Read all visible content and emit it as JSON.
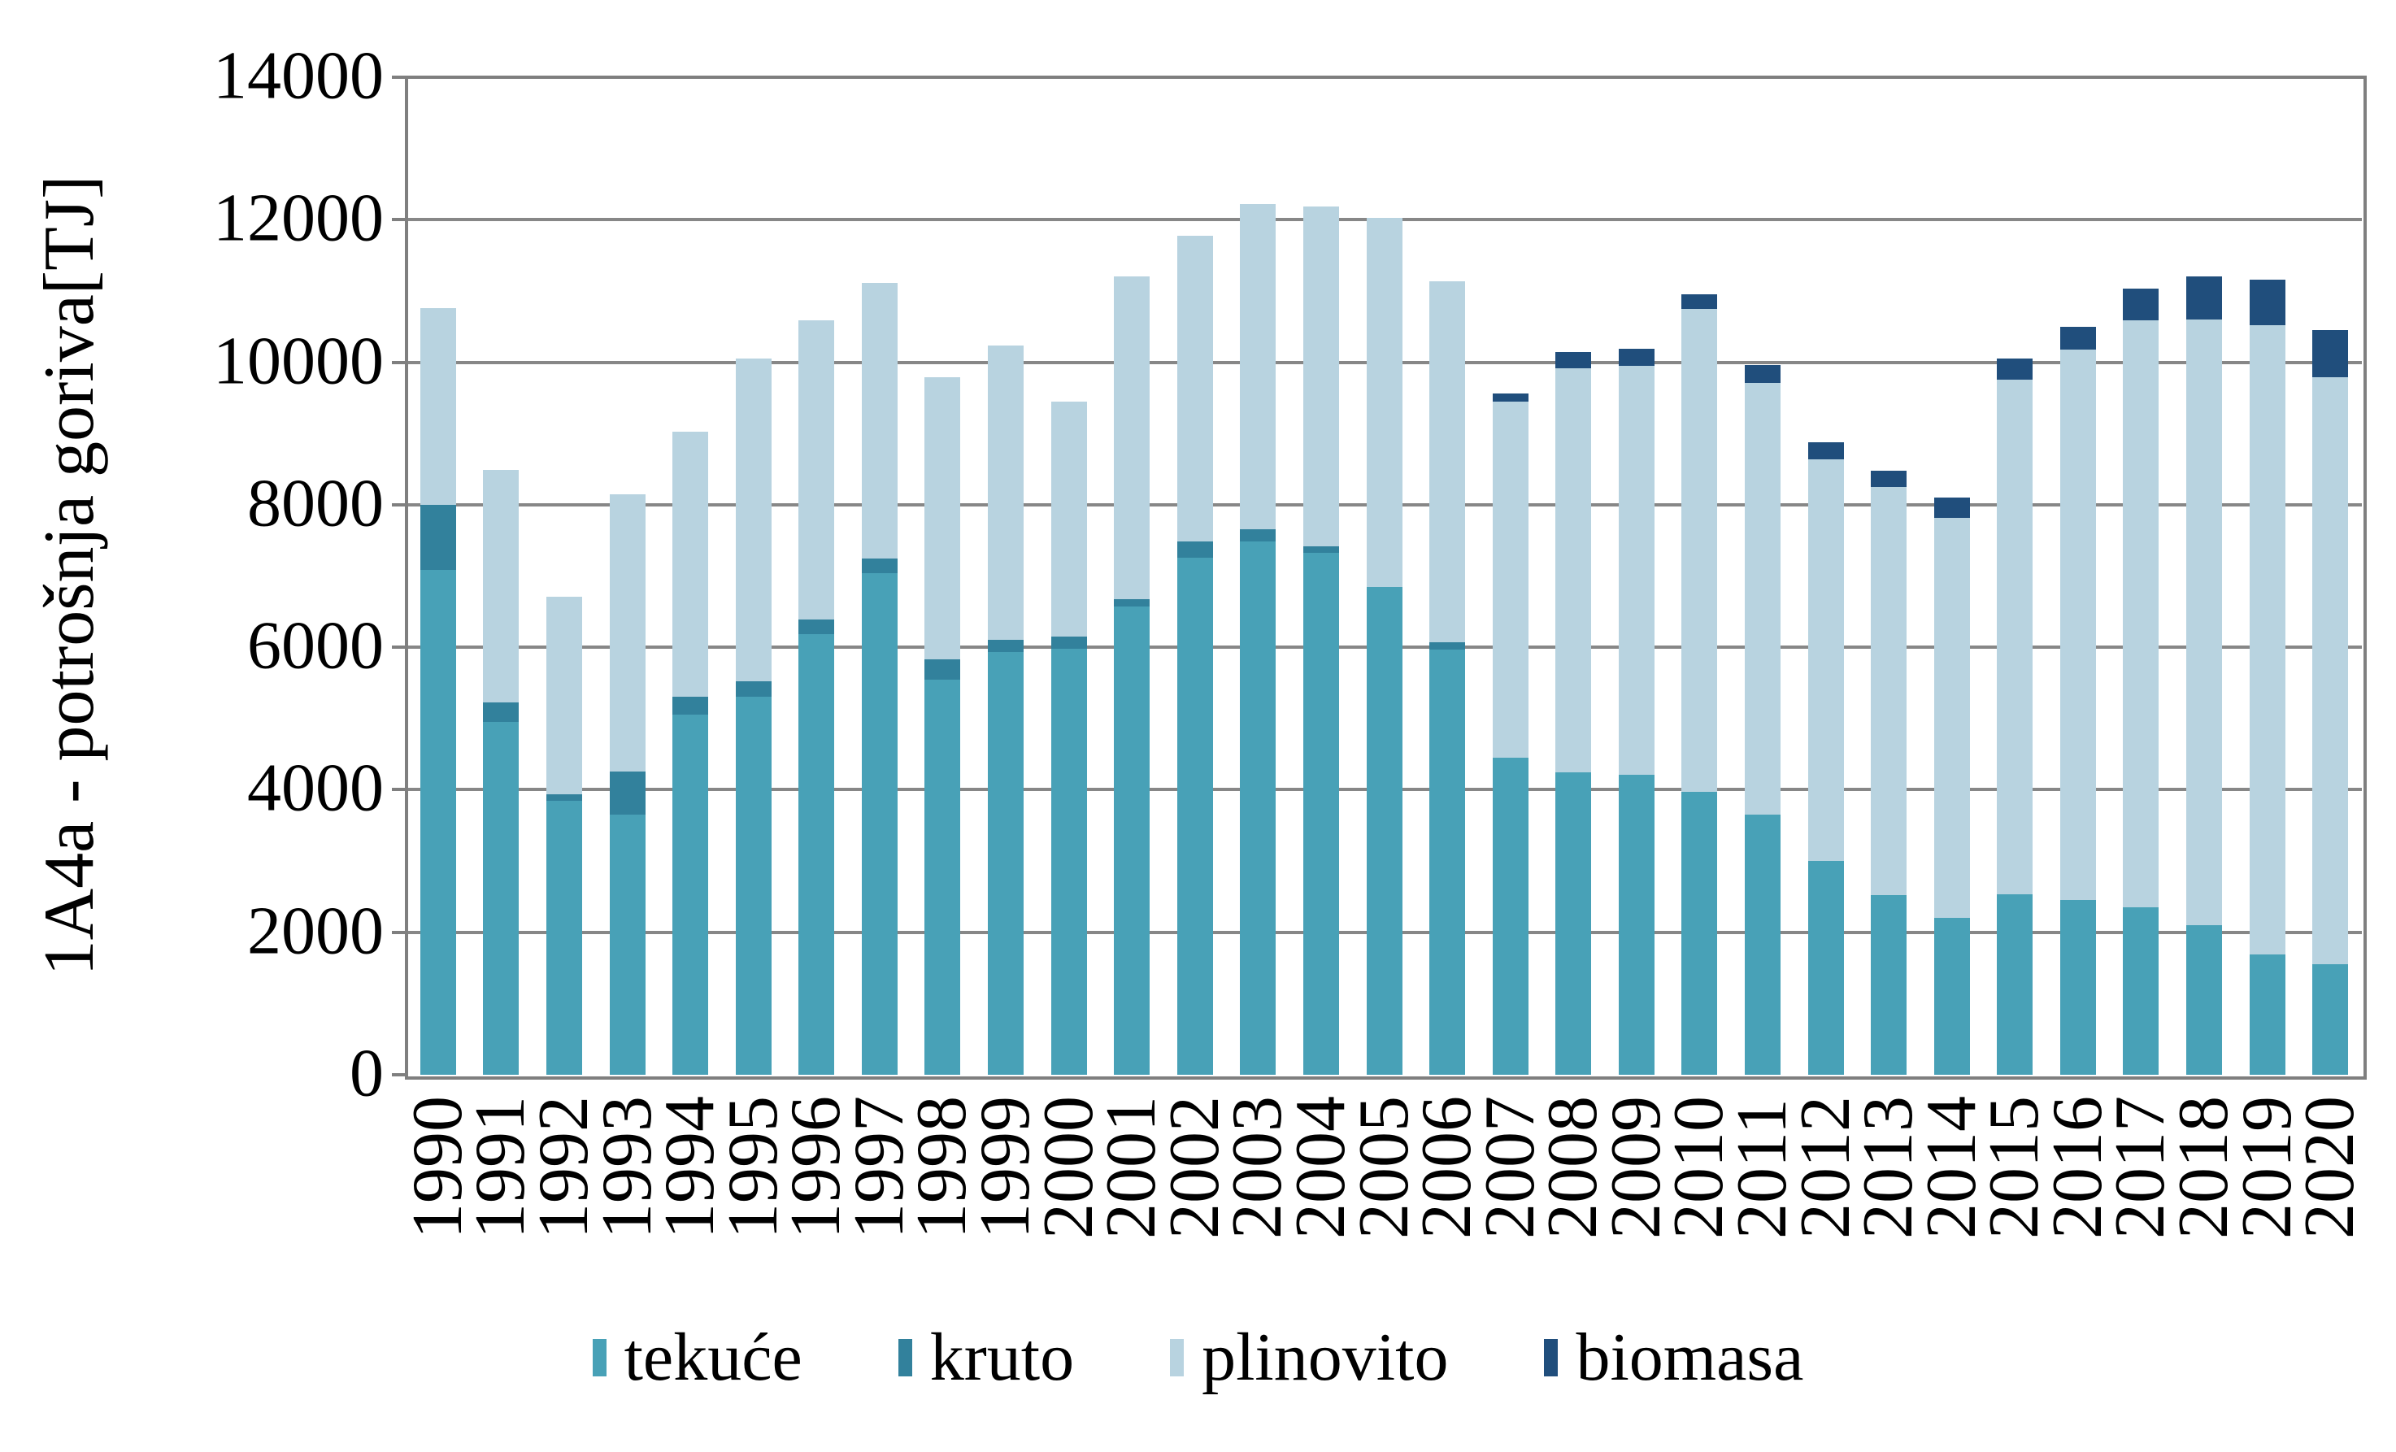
{
  "chart": {
    "y_axis_title": "1A4a - potrošnja goriva[TJ]",
    "colors": {
      "gridline": "#878787",
      "axis_border": "#7f7f7f",
      "text": "#000000",
      "background": "#ffffff"
    }
  },
  "chart_data": {
    "type": "bar",
    "stacked": true,
    "title": "",
    "xlabel": "",
    "ylabel": "1A4a - potrošnja goriva[TJ]",
    "ylim": [
      0,
      14000
    ],
    "yticks": [
      0,
      2000,
      4000,
      6000,
      8000,
      10000,
      12000,
      14000
    ],
    "grid": true,
    "legend_position": "bottom",
    "categories": [
      "1990",
      "1991",
      "1992",
      "1993",
      "1994",
      "1995",
      "1996",
      "1997",
      "1998",
      "1999",
      "2000",
      "2001",
      "2002",
      "2003",
      "2004",
      "2005",
      "2006",
      "2007",
      "2008",
      "2009",
      "2010",
      "2011",
      "2012",
      "2013",
      "2014",
      "2015",
      "2016",
      "2017",
      "2018",
      "2019",
      "2020"
    ],
    "series": [
      {
        "name": "tekuće",
        "color": "#48a1b7",
        "values": [
          7080,
          4950,
          3850,
          3650,
          5060,
          5300,
          6180,
          7040,
          5540,
          5930,
          5980,
          6570,
          7260,
          7480,
          7320,
          6850,
          5970,
          4450,
          4250,
          4210,
          3970,
          3650,
          3000,
          2520,
          2200,
          2530,
          2450,
          2350,
          2100,
          1690,
          1550
        ]
      },
      {
        "name": "kruto",
        "color": "#32819c",
        "values": [
          915,
          275,
          90,
          605,
          240,
          225,
          205,
          205,
          295,
          170,
          170,
          105,
          220,
          180,
          100,
          0,
          105,
          0,
          0,
          0,
          0,
          0,
          0,
          0,
          0,
          0,
          0,
          0,
          0,
          0,
          0
        ]
      },
      {
        "name": "plinovito",
        "color": "#b8d3e0",
        "values": [
          2760,
          3265,
          2765,
          3895,
          3730,
          4530,
          4200,
          3870,
          3960,
          4140,
          3300,
          4530,
          4300,
          4565,
          4770,
          5180,
          5060,
          4995,
          5665,
          5740,
          6780,
          6060,
          5640,
          5730,
          5620,
          7225,
          7730,
          8240,
          8500,
          8830,
          8240
        ]
      },
      {
        "name": "biomasa",
        "color": "#204e7c",
        "values": [
          0,
          0,
          0,
          0,
          0,
          0,
          0,
          0,
          0,
          0,
          0,
          0,
          0,
          0,
          0,
          0,
          0,
          115,
          230,
          240,
          205,
          250,
          240,
          225,
          280,
          300,
          315,
          445,
          605,
          640,
          660
        ]
      }
    ]
  }
}
